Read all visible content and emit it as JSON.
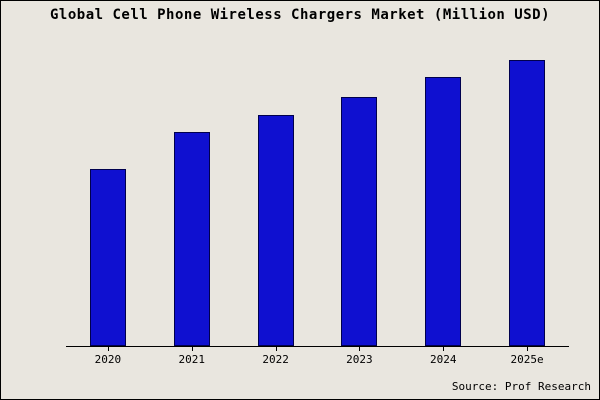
{
  "title": "Global Cell Phone Wireless Chargers Market (Million USD)",
  "source": "Source: Prof Research",
  "colors": {
    "background": "#e9e6df",
    "bar_fill": "#0f10d0",
    "bar_border": "#00004d",
    "axis": "#000000"
  },
  "chart_data": {
    "type": "bar",
    "title": "Global Cell Phone Wireless Chargers Market (Million USD)",
    "categories": [
      "2020",
      "2021",
      "2022",
      "2023",
      "2024",
      "2025e"
    ],
    "values": [
      62,
      75,
      81,
      87,
      94,
      100
    ],
    "values_estimated": true,
    "xlabel": "",
    "ylabel": "",
    "ylim": [
      0,
      105
    ],
    "grid": false,
    "legend": false,
    "annotations": [
      "Source: Prof Research"
    ]
  }
}
